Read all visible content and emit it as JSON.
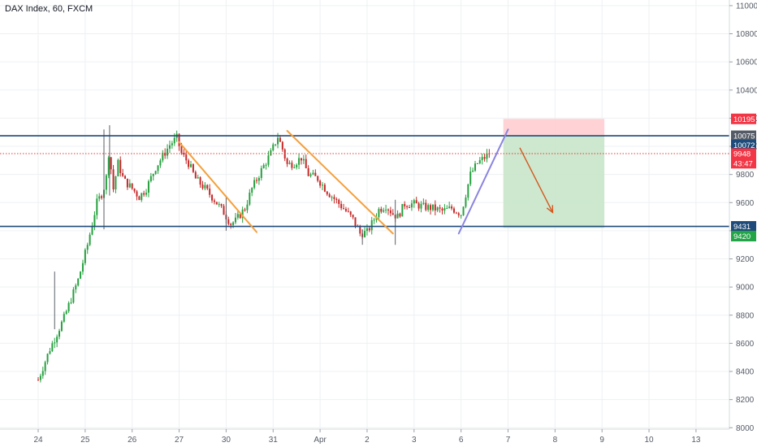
{
  "chart_data": {
    "type": "candlestick",
    "title": "DAX Index, 60, FXCM",
    "x_axis": {
      "ticks": [
        {
          "label": "24",
          "slot": 0
        },
        {
          "label": "25",
          "slot": 1
        },
        {
          "label": "26",
          "slot": 2
        },
        {
          "label": "27",
          "slot": 3
        },
        {
          "label": "30",
          "slot": 4
        },
        {
          "label": "31",
          "slot": 5
        },
        {
          "label": "Apr",
          "slot": 6
        },
        {
          "label": "2",
          "slot": 7
        },
        {
          "label": "3",
          "slot": 8
        },
        {
          "label": "6",
          "slot": 9
        },
        {
          "label": "7",
          "slot": 10
        },
        {
          "label": "8",
          "slot": 11
        },
        {
          "label": "9",
          "slot": 12
        },
        {
          "label": "10",
          "slot": 13
        },
        {
          "label": "13",
          "slot": 14
        }
      ]
    },
    "y_axis": {
      "ticks": [
        11000,
        10800,
        10600,
        10400,
        10200,
        10000,
        9800,
        9600,
        9400,
        9200,
        9000,
        8800,
        8600,
        8400,
        8200,
        8000
      ],
      "range": [
        7990,
        11040
      ]
    },
    "key_path": [
      [
        0.0,
        8340
      ],
      [
        0.25,
        8560
      ],
      [
        0.55,
        8780
      ],
      [
        0.85,
        9050
      ],
      [
        1.05,
        9300
      ],
      [
        1.25,
        9600
      ],
      [
        1.38,
        9680
      ],
      [
        1.45,
        9780
      ],
      [
        1.52,
        10020
      ],
      [
        1.58,
        9660
      ],
      [
        1.7,
        9880
      ],
      [
        1.82,
        9760
      ],
      [
        2.0,
        9700
      ],
      [
        2.15,
        9640
      ],
      [
        2.3,
        9700
      ],
      [
        2.5,
        9850
      ],
      [
        2.65,
        9930
      ],
      [
        2.8,
        10010
      ],
      [
        2.95,
        10060
      ],
      [
        3.05,
        9950
      ],
      [
        3.2,
        9880
      ],
      [
        3.35,
        9770
      ],
      [
        3.55,
        9700
      ],
      [
        3.75,
        9620
      ],
      [
        3.95,
        9530
      ],
      [
        4.1,
        9450
      ],
      [
        4.2,
        9470
      ],
      [
        4.4,
        9560
      ],
      [
        4.55,
        9700
      ],
      [
        4.75,
        9830
      ],
      [
        4.95,
        9950
      ],
      [
        5.1,
        10070
      ],
      [
        5.2,
        9980
      ],
      [
        5.3,
        9870
      ],
      [
        5.45,
        9880
      ],
      [
        5.6,
        9920
      ],
      [
        5.75,
        9800
      ],
      [
        5.95,
        9770
      ],
      [
        6.15,
        9680
      ],
      [
        6.35,
        9610
      ],
      [
        6.55,
        9540
      ],
      [
        6.7,
        9480
      ],
      [
        6.85,
        9380
      ],
      [
        7.0,
        9390
      ],
      [
        7.1,
        9450
      ],
      [
        7.25,
        9550
      ],
      [
        7.4,
        9580
      ],
      [
        7.55,
        9520
      ],
      [
        7.65,
        9500
      ],
      [
        7.8,
        9590
      ],
      [
        8.0,
        9590
      ],
      [
        8.2,
        9570
      ],
      [
        8.4,
        9560
      ],
      [
        8.6,
        9540
      ],
      [
        8.8,
        9560
      ],
      [
        9.0,
        9520
      ],
      [
        9.1,
        9660
      ],
      [
        9.2,
        9800
      ],
      [
        9.35,
        9880
      ],
      [
        9.5,
        9920
      ],
      [
        9.6,
        9950
      ]
    ],
    "spikes": [
      {
        "slot": 1.4,
        "high": 10120,
        "low": 9410
      },
      {
        "slot": 1.52,
        "high": 10150,
        "low": 9650
      },
      {
        "slot": 4.0,
        "high": 9650,
        "low": 9400
      },
      {
        "slot": 6.9,
        "high": 9410,
        "low": 9300
      },
      {
        "slot": 7.6,
        "high": 9620,
        "low": 9300
      },
      {
        "slot": 0.35,
        "high": 9110,
        "low": 8700
      }
    ],
    "horizontal_levels": [
      {
        "price": 10075,
        "style": "solid",
        "color": "#1e4b7a"
      },
      {
        "price": 9431,
        "style": "solid",
        "color": "#1e4b7a"
      },
      {
        "price": 9948,
        "style": "dotted",
        "color": "#e53935"
      }
    ],
    "trendlines": [
      {
        "color": "#f5a03c",
        "from": [
          3.0,
          10030
        ],
        "to": [
          4.65,
          9390
        ]
      },
      {
        "color": "#f5a03c",
        "from": [
          5.3,
          10110
        ],
        "to": [
          7.55,
          9380
        ]
      },
      {
        "color": "#8a84e0",
        "from": [
          8.95,
          9380
        ],
        "to": [
          10.0,
          10120
        ]
      }
    ],
    "arrow": {
      "color": "#d4571f",
      "from": [
        10.25,
        9990
      ],
      "to": [
        10.95,
        9530
      ]
    },
    "risk_box": {
      "x_from": 9.9,
      "x_to": 12.05,
      "top": 10195,
      "entry": 10072,
      "bottom": 9420
    },
    "price_tags": [
      {
        "label": "11000",
        "price": 11000,
        "kind": "tick"
      },
      {
        "label": "10195",
        "price": 10195,
        "color": "#f23645"
      },
      {
        "label": "10075",
        "price": 10075,
        "color": "#555b66"
      },
      {
        "label": "10072",
        "price": 10010,
        "color": "#1e4b7a"
      },
      {
        "label": "9948",
        "price": 9948,
        "color": "#f23645"
      },
      {
        "label": "43:47",
        "price": 9880,
        "color": "#f23645"
      },
      {
        "label": "9431",
        "price": 9431,
        "color": "#1e4b7a"
      },
      {
        "label": "9420",
        "price": 9362,
        "color": "#22a447"
      }
    ],
    "colors": {
      "up": "#26a03f",
      "down": "#c62828",
      "grid": "#eef0f3",
      "box_loss": "#ffcdd2",
      "box_profit": "#c8e6c9"
    },
    "grid": true
  }
}
